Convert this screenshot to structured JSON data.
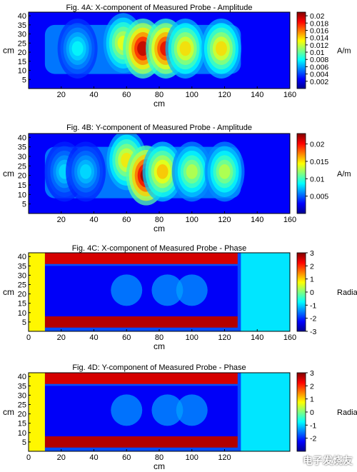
{
  "chart_data": [
    {
      "type": "heatmap",
      "title": "Fig. 4A: X-component of Measured Probe - Amplitude",
      "xlabel": "cm",
      "ylabel": "cm",
      "xlim": [
        0,
        160
      ],
      "ylim": [
        0,
        42
      ],
      "xticks": [
        "20",
        "40",
        "60",
        "80",
        "100",
        "120",
        "140",
        "160"
      ],
      "yticks": [
        "5",
        "10",
        "15",
        "20",
        "25",
        "30",
        "35",
        "40"
      ],
      "colorbar": {
        "label": "A/m",
        "min": 0,
        "max": 0.021,
        "ticks": [
          "0.002",
          "0.004",
          "0.006",
          "0.008",
          "0.01",
          "0.012",
          "0.014",
          "0.016",
          "0.018",
          "0.02"
        ]
      },
      "hotspots": [
        {
          "x": 30,
          "y": 22,
          "value": 0.008
        },
        {
          "x": 58,
          "y": 25,
          "value": 0.013
        },
        {
          "x": 70,
          "y": 22,
          "value": 0.02
        },
        {
          "x": 84,
          "y": 22,
          "value": 0.019
        },
        {
          "x": 96,
          "y": 22,
          "value": 0.014
        },
        {
          "x": 118,
          "y": 22,
          "value": 0.014
        }
      ]
    },
    {
      "type": "heatmap",
      "title": "Fig. 4B: Y-component of Measured Probe - Amplitude",
      "xlabel": "cm",
      "ylabel": "cm",
      "xlim": [
        0,
        160
      ],
      "ylim": [
        0,
        42
      ],
      "xticks": [
        "20",
        "40",
        "60",
        "80",
        "100",
        "120",
        "140",
        "160"
      ],
      "yticks": [
        "5",
        "10",
        "15",
        "20",
        "25",
        "30",
        "35",
        "40"
      ],
      "colorbar": {
        "label": "A/m",
        "min": 0,
        "max": 0.023,
        "ticks": [
          "0.005",
          "0.01",
          "0.015",
          "0.02"
        ]
      },
      "hotspots": [
        {
          "x": 22,
          "y": 22,
          "value": 0.008
        },
        {
          "x": 35,
          "y": 22,
          "value": 0.008
        },
        {
          "x": 60,
          "y": 28,
          "value": 0.015
        },
        {
          "x": 72,
          "y": 20,
          "value": 0.023
        },
        {
          "x": 82,
          "y": 22,
          "value": 0.016
        },
        {
          "x": 100,
          "y": 22,
          "value": 0.013
        },
        {
          "x": 120,
          "y": 22,
          "value": 0.013
        }
      ]
    },
    {
      "type": "heatmap",
      "title": "Fig. 4C: X-component of Measured Probe - Phase",
      "xlabel": "cm",
      "ylabel": "cm",
      "xlim": [
        0,
        160
      ],
      "ylim": [
        0,
        42
      ],
      "xticks": [
        "0",
        "20",
        "40",
        "60",
        "80",
        "100",
        "120",
        "140",
        "160"
      ],
      "yticks": [
        "5",
        "10",
        "15",
        "20",
        "25",
        "30",
        "35",
        "40"
      ],
      "colorbar": {
        "label": "Radians",
        "min": -3,
        "max": 3,
        "ticks": [
          "3",
          "2",
          "1",
          "0",
          "-1",
          "-2",
          "-3"
        ]
      },
      "regions": {
        "center_phase": -2.3,
        "top_band_phase": 3,
        "bottom_band_phase": 3,
        "band_end_x": 128
      }
    },
    {
      "type": "heatmap",
      "title": "Fig. 4D: Y-component of Measured Probe - Phase",
      "xlabel": "cm",
      "ylabel": "cm",
      "xlim": [
        0,
        160
      ],
      "ylim": [
        0,
        42
      ],
      "xticks": [
        "0",
        "20",
        "40",
        "60",
        "80",
        "100",
        "120"
      ],
      "yticks": [
        "5",
        "10",
        "15",
        "20",
        "25",
        "30",
        "35",
        "40"
      ],
      "colorbar": {
        "label": "Radians",
        "min": -3,
        "max": 3,
        "ticks": [
          "3",
          "2",
          "1",
          "0",
          "-1",
          "-2"
        ]
      },
      "regions": {
        "center_phase": -2.3,
        "top_band_phase": 3,
        "bottom_band_phase": 3,
        "band_end_x": 128
      }
    }
  ],
  "watermark": {
    "text": "电子发烧友"
  },
  "colors": {
    "background": "#ffffff"
  }
}
